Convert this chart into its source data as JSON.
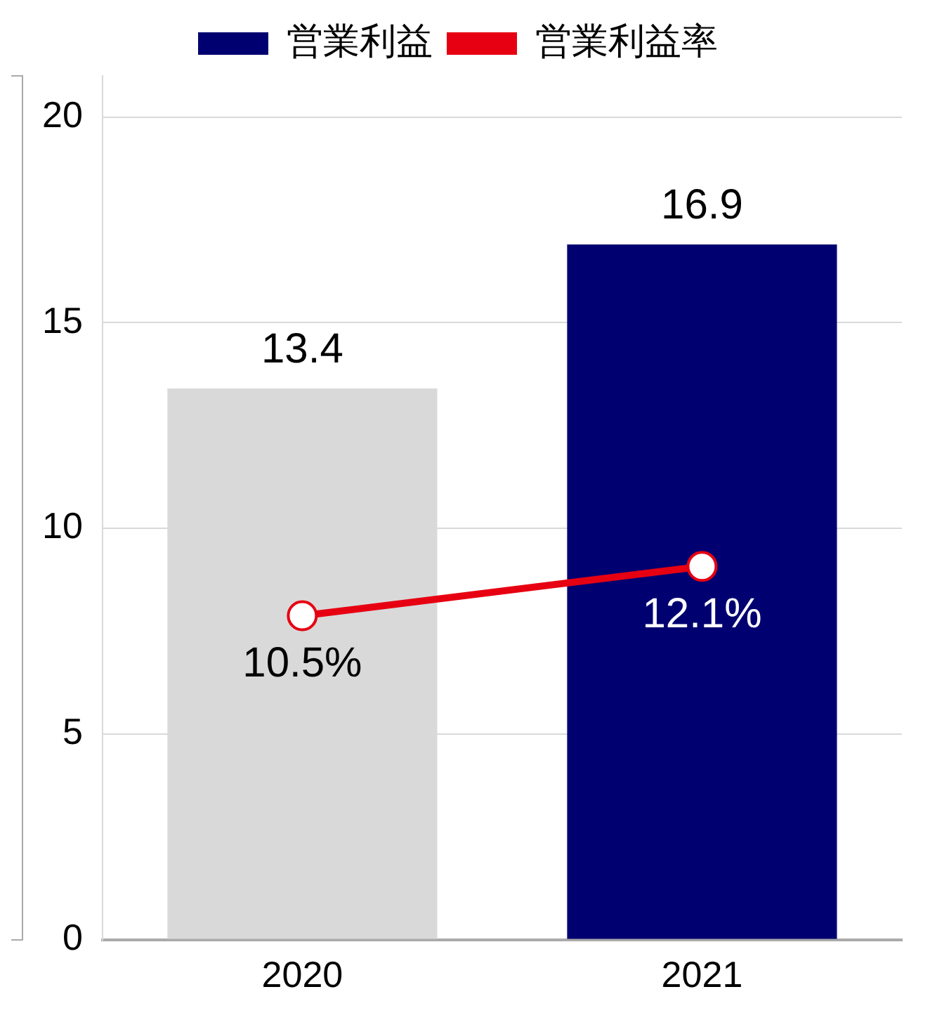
{
  "chart_data": {
    "type": "bar",
    "categories": [
      "2020",
      "2021"
    ],
    "series": [
      {
        "name": "営業利益",
        "colors": [
          "#d9d9d9",
          "#000070"
        ],
        "values": [
          13.4,
          16.9
        ],
        "value_labels": [
          "13.4",
          "16.9"
        ]
      },
      {
        "name": "営業利益率",
        "type": "line",
        "color": "#e60012",
        "axis": "y2",
        "marker": "circle",
        "values": [
          10.5,
          12.1
        ],
        "value_labels": [
          "10.5%",
          "12.1%"
        ]
      }
    ],
    "ylim": [
      0,
      21
    ],
    "yticks": [
      0,
      5,
      10,
      15,
      20
    ],
    "y2lim": [
      0,
      28
    ],
    "grid": "y",
    "legend": "top"
  }
}
